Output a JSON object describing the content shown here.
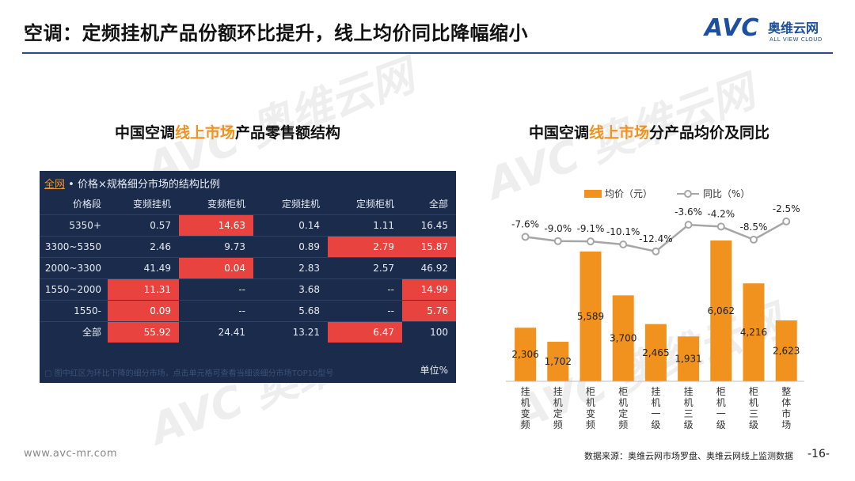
{
  "title": "空调：定频挂机产品份额环比提升，线上均价同比降幅缩小",
  "logo": {
    "mark": "AVC",
    "cn": "奥维云网",
    "en": "ALL VIEW CLOUD"
  },
  "watermark": {
    "text": "AVC 奥维云网",
    "en": "ALL VIEW CLOUD"
  },
  "left": {
    "title_prefix": "中国空调",
    "title_highlight": "线上市场",
    "title_suffix": "产品零售额结构",
    "caption_net": "全网",
    "caption_rest": " • 价格×规格细分市场的结构比例",
    "columns": [
      "价格段",
      "变频挂机",
      "变频柜机",
      "定频挂机",
      "定频柜机",
      "全部"
    ],
    "rows": [
      {
        "cells": [
          "5350+",
          "0.57",
          "14.63",
          "0.14",
          "1.11",
          "16.45"
        ],
        "red": [
          2
        ]
      },
      {
        "cells": [
          "3300~5350",
          "2.46",
          "9.73",
          "0.89",
          "2.79",
          "15.87"
        ],
        "red": [
          4,
          5
        ]
      },
      {
        "cells": [
          "2000~3300",
          "41.49",
          "0.04",
          "2.83",
          "2.57",
          "46.92"
        ],
        "red": [
          2
        ]
      },
      {
        "cells": [
          "1550~2000",
          "11.31",
          "--",
          "3.68",
          "--",
          "14.99"
        ],
        "red": [
          1,
          5
        ]
      },
      {
        "cells": [
          "1550-",
          "0.09",
          "--",
          "5.68",
          "--",
          "5.76"
        ],
        "red": [
          1,
          5
        ]
      },
      {
        "cells": [
          "全部",
          "55.92",
          "24.41",
          "13.21",
          "6.47",
          "100"
        ],
        "red": [
          1,
          4
        ]
      }
    ],
    "note": "▢ 图中红区为环比下降的细分市场，点击单元格可查看当细该细分市场TOP10型号",
    "unit": "单位%"
  },
  "right": {
    "title_prefix": "中国空调",
    "title_highlight": "线上市场",
    "title_suffix": "分产品均价及同比"
  },
  "chart_data": {
    "type": "bar",
    "categories": [
      "挂机变频",
      "挂机定频",
      "柜机变频",
      "柜机定频",
      "挂机一级",
      "挂机三级",
      "柜机一级",
      "柜机三级",
      "整体市场"
    ],
    "series": [
      {
        "name": "均价（元）",
        "type": "bar",
        "values": [
          2306,
          1702,
          5589,
          3700,
          2465,
          1931,
          6062,
          4216,
          2623
        ],
        "labels": [
          "2,306",
          "1,702",
          "5,589",
          "3,700",
          "2,465",
          "1,931",
          "6,062",
          "4,216",
          "2,623"
        ],
        "color": "#f0921d"
      },
      {
        "name": "同比（%）",
        "type": "line",
        "values": [
          -7.6,
          -9.0,
          -9.1,
          -10.1,
          -12.4,
          -3.6,
          -4.2,
          -8.5,
          -2.5
        ],
        "labels": [
          "-7.6%",
          "-9.0%",
          "-9.1%",
          "-10.1%",
          "-12.4%",
          "-3.6%",
          "-4.2%",
          "-8.5%",
          "-2.5%"
        ],
        "color": "#a6a6a6"
      }
    ],
    "legend": "top",
    "grid": false
  },
  "footer": {
    "url": "www.avc-mr.com",
    "source": "数据来源：奥维云网市场罗盘、奥维云网线上监测数据",
    "page": "-16-"
  }
}
